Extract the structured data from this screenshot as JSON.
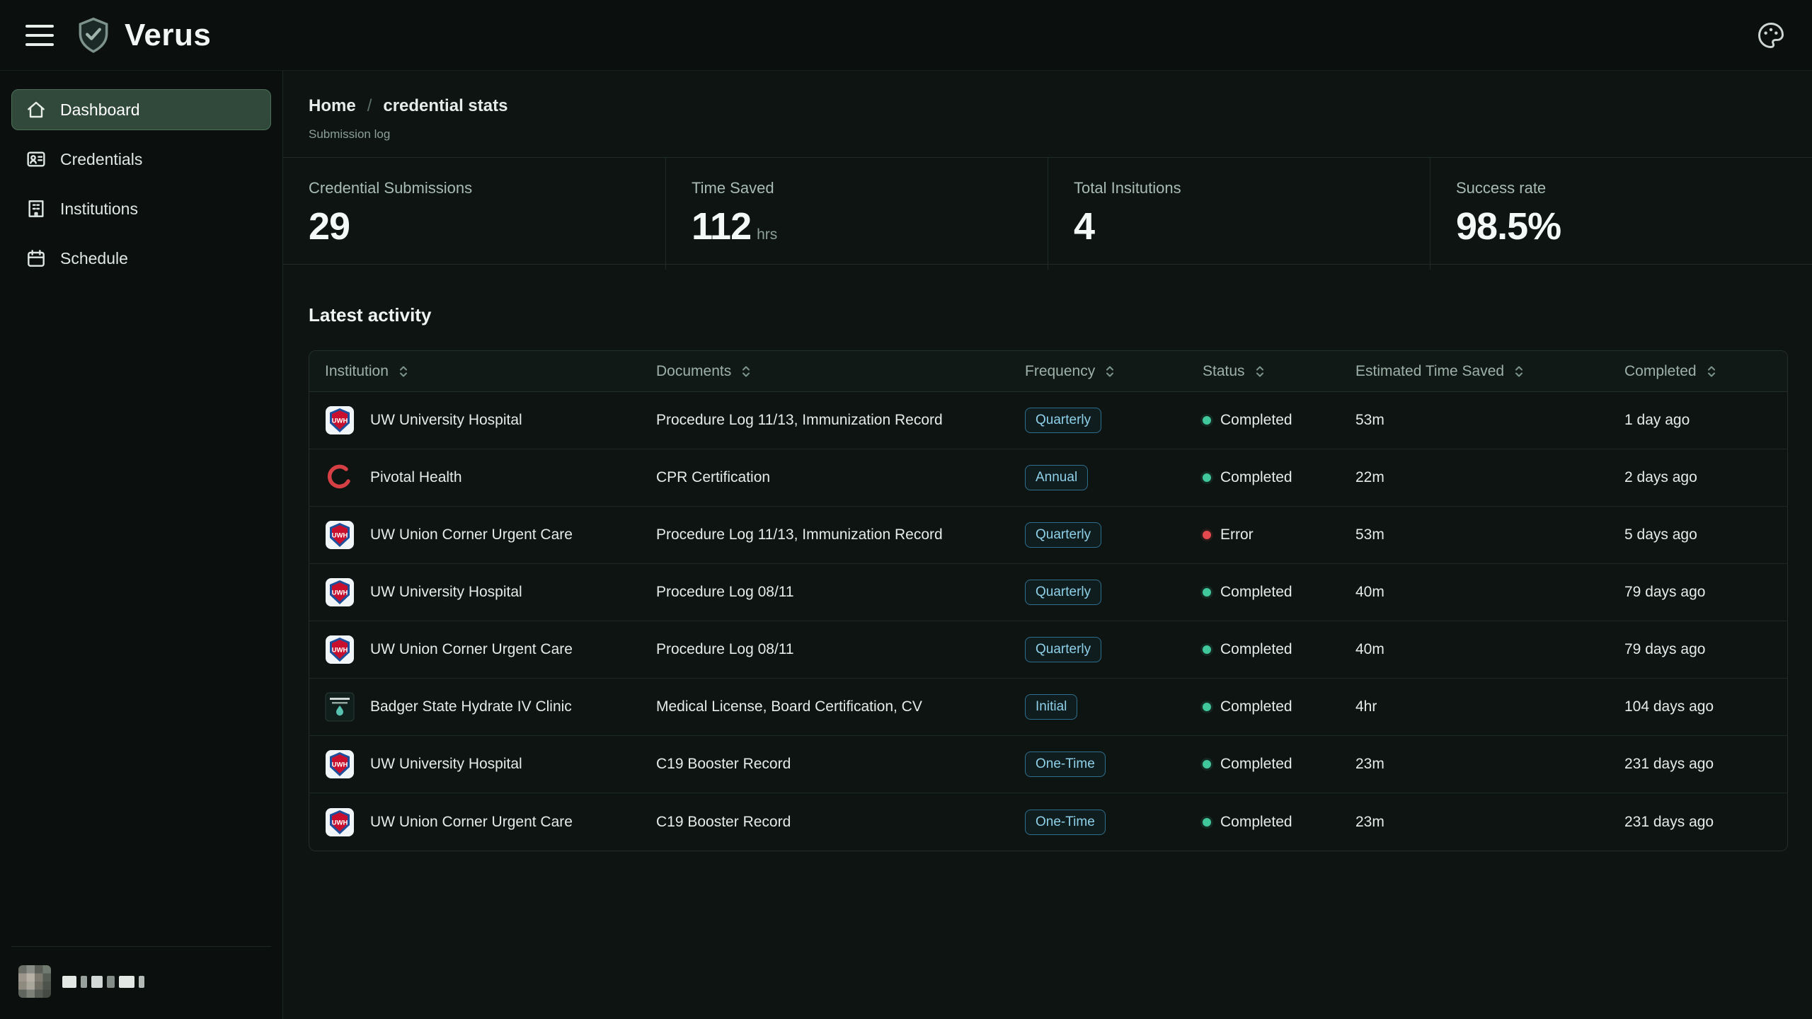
{
  "topbar": {
    "title": "Verus",
    "menu_icon": "hamburger-menu-icon",
    "logo_icon": "shield-check-logo",
    "theme_icon": "palette-icon"
  },
  "sidebar": {
    "items": [
      {
        "label": "Dashboard",
        "icon": "home-icon",
        "active": true
      },
      {
        "label": "Credentials",
        "icon": "id-card-icon",
        "active": false
      },
      {
        "label": "Institutions",
        "icon": "building-icon",
        "active": false
      },
      {
        "label": "Schedule",
        "icon": "calendar-icon",
        "active": false
      }
    ],
    "user": {
      "avatar_icon": "pixelated-avatar",
      "name_redacted": true
    }
  },
  "breadcrumb": {
    "home": "Home",
    "separator": "/",
    "current": "credential stats",
    "subtitle": "Submission log"
  },
  "stats": [
    {
      "label": "Credential Submissions",
      "value": "29"
    },
    {
      "label": "Time Saved",
      "value": "112",
      "suffix": "hrs"
    },
    {
      "label": "Total Insitutions",
      "value": "4"
    },
    {
      "label": "Success rate",
      "value": "98.5%"
    }
  ],
  "activity": {
    "title": "Latest activity",
    "columns": [
      "Institution",
      "Documents",
      "Frequency",
      "Status",
      "Estimated Time Saved",
      "Completed"
    ],
    "sort_icon": "sort-chevrons-icon",
    "rows": [
      {
        "institution": "UW University Hospital",
        "logo": "uwh-logo",
        "documents": "Procedure Log 11/13, Immunization Record",
        "frequency": "Quarterly",
        "status": "Completed",
        "time_saved": "53m",
        "completed": "1 day ago"
      },
      {
        "institution": "Pivotal Health",
        "logo": "pivotal-health-logo",
        "documents": "CPR Certification",
        "frequency": "Annual",
        "status": "Completed",
        "time_saved": "22m",
        "completed": "2 days ago"
      },
      {
        "institution": "UW Union Corner Urgent Care",
        "logo": "uwh-logo",
        "documents": "Procedure Log 11/13, Immunization Record",
        "frequency": "Quarterly",
        "status": "Error",
        "time_saved": "53m",
        "completed": "5 days ago"
      },
      {
        "institution": "UW University Hospital",
        "logo": "uwh-logo",
        "documents": "Procedure Log 08/11",
        "frequency": "Quarterly",
        "status": "Completed",
        "time_saved": "40m",
        "completed": "79 days ago"
      },
      {
        "institution": "UW Union Corner Urgent Care",
        "logo": "uwh-logo",
        "documents": "Procedure Log 08/11",
        "frequency": "Quarterly",
        "status": "Completed",
        "time_saved": "40m",
        "completed": "79 days ago"
      },
      {
        "institution": "Badger State Hydrate IV Clinic",
        "logo": "badger-state-logo",
        "documents": "Medical License, Board Certification, CV",
        "frequency": "Initial",
        "status": "Completed",
        "time_saved": "4hr",
        "completed": "104 days ago"
      },
      {
        "institution": "UW University Hospital",
        "logo": "uwh-logo",
        "documents": "C19 Booster Record",
        "frequency": "One-Time",
        "status": "Completed",
        "time_saved": "23m",
        "completed": "231 days ago"
      },
      {
        "institution": "UW Union Corner Urgent Care",
        "logo": "uwh-logo",
        "documents": "C19 Booster Record",
        "frequency": "One-Time",
        "status": "Completed",
        "time_saved": "23m",
        "completed": "231 days ago"
      }
    ]
  },
  "colors": {
    "background": "#0c1211",
    "sidebar_active": "#30493a",
    "badge_text": "#8fd0e9",
    "badge_border": "#2f6f8e",
    "status_completed": "#41c79c",
    "status_error": "#e5484d"
  }
}
